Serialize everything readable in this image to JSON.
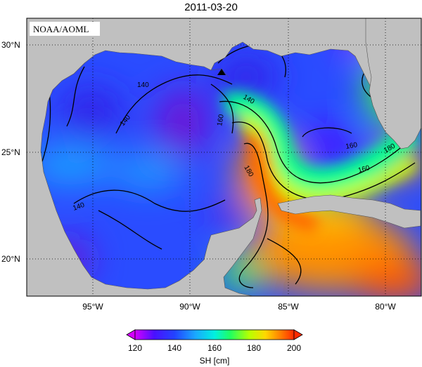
{
  "title": "2011-03-20",
  "credit": "NOAA/AOML",
  "axes": {
    "lat_ticks": [
      "30°N",
      "25°N",
      "20°N"
    ],
    "lon_ticks": [
      "95°W",
      "90°W",
      "85°W",
      "80°W"
    ]
  },
  "contour_labels": [
    "140",
    "140",
    "140",
    "140",
    "160",
    "160",
    "180",
    "180",
    "160"
  ],
  "colorbar": {
    "label": "SH [cm]",
    "ticks": [
      "120",
      "140",
      "160",
      "180",
      "200"
    ],
    "min": 120,
    "max": 200,
    "colors": [
      "#d400ff",
      "#6a00ff",
      "#2030ff",
      "#2a66ff",
      "#00c8ff",
      "#00ff90",
      "#50ff00",
      "#c8ff00",
      "#ffe000",
      "#ff9a00",
      "#ff5000",
      "#ff2000"
    ]
  },
  "colors": {
    "land": "#c0c0c0",
    "background": "#ffffff"
  }
}
